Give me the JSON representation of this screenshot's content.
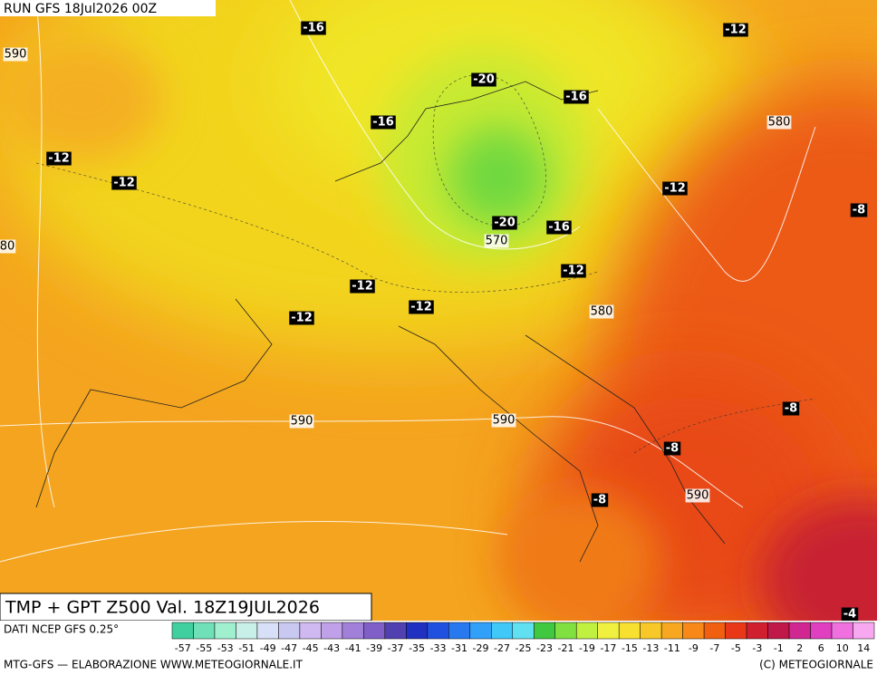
{
  "header": {
    "run": "RUN GFS 18Jul2026 00Z"
  },
  "map": {
    "isotherm_labels": [
      -16,
      -12,
      -20,
      -16,
      -16,
      -12,
      -12,
      -12,
      -8,
      -20,
      -16,
      -12,
      -12,
      -12,
      -12,
      -8,
      -8,
      -8,
      -4
    ],
    "height_labels": [
      590,
      580,
      570,
      80,
      580,
      590,
      590,
      590
    ]
  },
  "title": "TMP + GPT Z500 Val. 18Z19JUL2026",
  "source": "DATI NCEP GFS 0.25°",
  "scale": {
    "values": [
      -57,
      -55,
      -53,
      -51,
      -49,
      -47,
      -45,
      -43,
      -41,
      -39,
      -37,
      -35,
      -33,
      -31,
      -29,
      -27,
      -25,
      -23,
      -21,
      -19,
      -17,
      -15,
      -13,
      -11,
      -9,
      -7,
      -5,
      -3,
      -1,
      2,
      6,
      10,
      14
    ],
    "colors": [
      "#40d0a0",
      "#70e0b8",
      "#a0f0d0",
      "#c8f0e8",
      "#d8e0f8",
      "#c8c8f0",
      "#d0b8f0",
      "#c0a0e8",
      "#a080d8",
      "#8060c8",
      "#5040b0",
      "#2030c0",
      "#2050e0",
      "#2878f0",
      "#30a0f8",
      "#40c8f8",
      "#60e0f0",
      "#40c840",
      "#80e040",
      "#c0f040",
      "#f0f040",
      "#f8e030",
      "#f8c828",
      "#f8a820",
      "#f88818",
      "#f06010",
      "#e83818",
      "#d02030",
      "#c01848",
      "#d02890",
      "#e040c0",
      "#f070e0",
      "#f8a8f0"
    ]
  },
  "footer": {
    "left": "MTG-GFS — ELABORAZIONE WWW.METEOGIORNALE.IT",
    "right": "(C) METEOGIORNALE"
  }
}
